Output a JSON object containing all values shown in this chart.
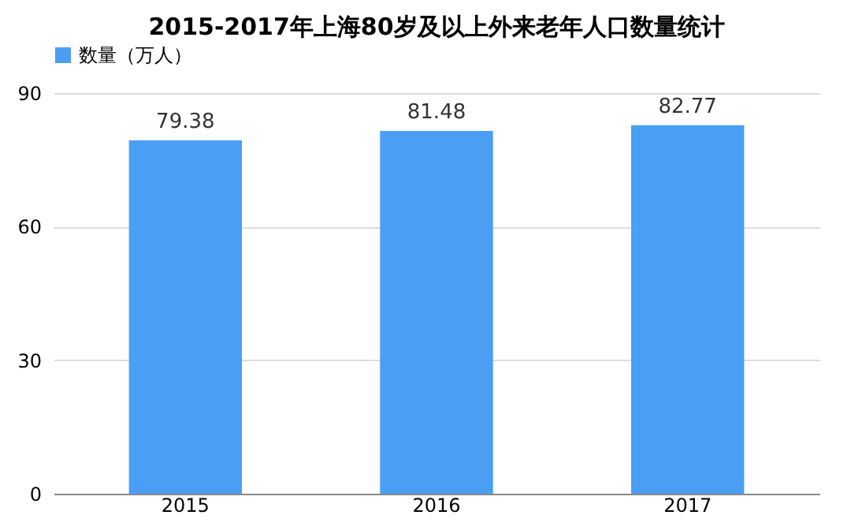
{
  "chart_data": {
    "type": "bar",
    "title": "2015-2017年上海80岁及以上外来老年人口数量统计",
    "categories": [
      "2015",
      "2016",
      "2017"
    ],
    "series": [
      {
        "name": "数量（万人）",
        "color": "#4a9ff5",
        "values": [
          79.38,
          81.48,
          82.77
        ]
      }
    ],
    "ylim": [
      0,
      90
    ],
    "yticks": [
      0,
      30,
      60,
      90
    ],
    "grid": "y",
    "legend": "top",
    "data_labels": true
  }
}
